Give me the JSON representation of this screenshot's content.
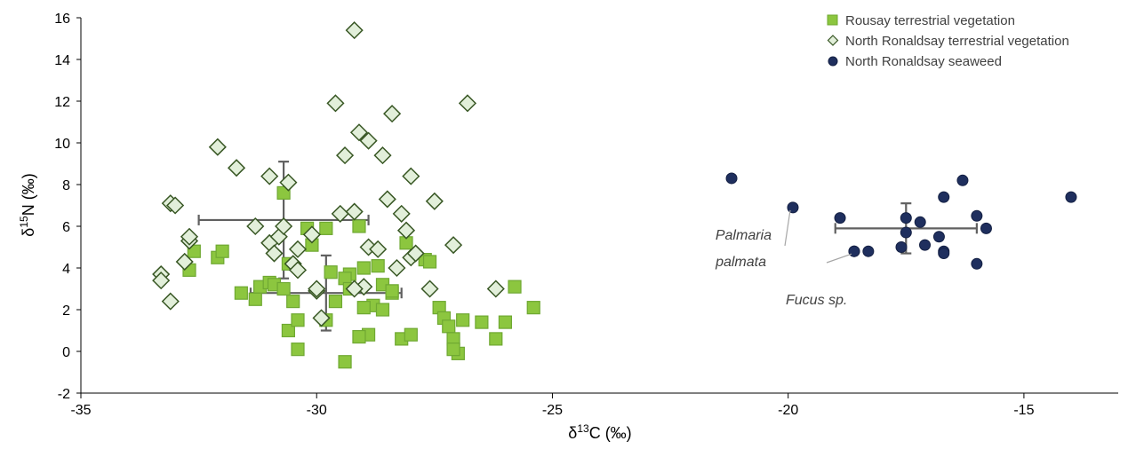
{
  "chart_data": {
    "type": "scatter",
    "xlim": [
      -35,
      -13
    ],
    "ylim": [
      -2,
      16
    ],
    "xticks": [
      -35,
      -30,
      -25,
      -20,
      -15
    ],
    "yticks": [
      -2,
      0,
      2,
      4,
      6,
      8,
      10,
      12,
      14,
      16
    ],
    "xlabel": {
      "prefix": "δ",
      "sup": "13",
      "suffix": "C (‰)"
    },
    "ylabel": {
      "prefix": "δ",
      "sup": "15",
      "suffix": "N (‰)"
    },
    "legend_position": "top-right",
    "grid": false,
    "series": [
      {
        "name": "Rousay terrestrial vegetation",
        "marker": "square",
        "fill": "#8cc63f",
        "stroke": "#6fa832",
        "points": [
          [
            -32.7,
            3.9
          ],
          [
            -32.6,
            4.8
          ],
          [
            -32.1,
            4.5
          ],
          [
            -32.0,
            4.8
          ],
          [
            -31.6,
            2.8
          ],
          [
            -31.3,
            2.5
          ],
          [
            -31.2,
            3.1
          ],
          [
            -31.0,
            3.3
          ],
          [
            -30.9,
            3.2
          ],
          [
            -30.7,
            3.0
          ],
          [
            -30.5,
            2.4
          ],
          [
            -30.6,
            1.0
          ],
          [
            -30.4,
            1.5
          ],
          [
            -30.6,
            4.2
          ],
          [
            -30.2,
            5.9
          ],
          [
            -30.7,
            7.6
          ],
          [
            -30.1,
            5.1
          ],
          [
            -29.8,
            5.9
          ],
          [
            -30.4,
            0.1
          ],
          [
            -29.8,
            1.5
          ],
          [
            -29.6,
            2.4
          ],
          [
            -29.7,
            3.8
          ],
          [
            -29.3,
            3.7
          ],
          [
            -29.4,
            3.5
          ],
          [
            -29.3,
            3.0
          ],
          [
            -29.1,
            6.0
          ],
          [
            -29.0,
            4.0
          ],
          [
            -28.8,
            2.2
          ],
          [
            -29.0,
            2.1
          ],
          [
            -28.9,
            0.8
          ],
          [
            -29.1,
            0.7
          ],
          [
            -28.6,
            3.2
          ],
          [
            -28.4,
            2.8
          ],
          [
            -28.2,
            0.6
          ],
          [
            -28.0,
            0.8
          ],
          [
            -28.1,
            5.2
          ],
          [
            -27.7,
            4.4
          ],
          [
            -27.6,
            4.3
          ],
          [
            -27.4,
            2.1
          ],
          [
            -27.3,
            1.6
          ],
          [
            -27.2,
            1.2
          ],
          [
            -27.1,
            0.6
          ],
          [
            -27.0,
            -0.1
          ],
          [
            -28.4,
            2.9
          ],
          [
            -28.7,
            4.1
          ],
          [
            -29.4,
            -0.5
          ],
          [
            -26.9,
            1.5
          ],
          [
            -26.5,
            1.4
          ],
          [
            -26.2,
            0.6
          ],
          [
            -26.0,
            1.4
          ],
          [
            -25.8,
            3.1
          ],
          [
            -25.4,
            2.1
          ],
          [
            -27.1,
            0.1
          ],
          [
            -28.6,
            2.0
          ]
        ]
      },
      {
        "name": "North Ronaldsay terrestrial vegetation",
        "marker": "diamond",
        "fill": "#e2efda",
        "stroke": "#375623",
        "points": [
          [
            -33.3,
            3.7
          ],
          [
            -33.3,
            3.4
          ],
          [
            -33.1,
            2.4
          ],
          [
            -33.1,
            7.1
          ],
          [
            -33.0,
            7.0
          ],
          [
            -32.8,
            4.3
          ],
          [
            -32.7,
            5.3
          ],
          [
            -32.7,
            5.5
          ],
          [
            -32.1,
            9.8
          ],
          [
            -31.7,
            8.8
          ],
          [
            -31.3,
            6.0
          ],
          [
            -31.0,
            8.4
          ],
          [
            -31.0,
            5.2
          ],
          [
            -30.9,
            4.7
          ],
          [
            -30.8,
            5.5
          ],
          [
            -30.7,
            6.0
          ],
          [
            -30.6,
            8.1
          ],
          [
            -30.5,
            4.2
          ],
          [
            -30.4,
            4.9
          ],
          [
            -30.4,
            3.9
          ],
          [
            -30.1,
            5.6
          ],
          [
            -30.0,
            2.9
          ],
          [
            -29.9,
            1.6
          ],
          [
            -30.0,
            3.0
          ],
          [
            -29.6,
            11.9
          ],
          [
            -29.5,
            6.6
          ],
          [
            -29.4,
            9.4
          ],
          [
            -29.2,
            6.7
          ],
          [
            -29.0,
            3.1
          ],
          [
            -29.2,
            3.0
          ],
          [
            -29.2,
            15.4
          ],
          [
            -29.1,
            10.5
          ],
          [
            -28.9,
            10.1
          ],
          [
            -28.9,
            5.0
          ],
          [
            -28.7,
            4.9
          ],
          [
            -28.6,
            9.4
          ],
          [
            -28.5,
            7.3
          ],
          [
            -28.4,
            11.4
          ],
          [
            -28.3,
            4.0
          ],
          [
            -28.2,
            6.6
          ],
          [
            -28.1,
            5.8
          ],
          [
            -28.0,
            8.4
          ],
          [
            -28.0,
            4.5
          ],
          [
            -27.9,
            4.7
          ],
          [
            -27.6,
            3.0
          ],
          [
            -27.5,
            7.2
          ],
          [
            -27.1,
            5.1
          ],
          [
            -26.8,
            11.9
          ],
          [
            -26.2,
            3.0
          ]
        ]
      },
      {
        "name": "North Ronaldsay seaweed",
        "marker": "circle",
        "fill": "#1f2f5e",
        "stroke": "#142043",
        "points": [
          [
            -21.2,
            8.3
          ],
          [
            -19.9,
            6.9
          ],
          [
            -18.9,
            6.4
          ],
          [
            -18.6,
            4.8
          ],
          [
            -18.6,
            4.8
          ],
          [
            -18.3,
            4.8
          ],
          [
            -17.6,
            5.0
          ],
          [
            -17.5,
            5.7
          ],
          [
            -17.5,
            6.4
          ],
          [
            -17.2,
            6.2
          ],
          [
            -17.1,
            5.1
          ],
          [
            -16.8,
            5.5
          ],
          [
            -16.7,
            7.4
          ],
          [
            -16.7,
            4.8
          ],
          [
            -16.7,
            4.7
          ],
          [
            -16.3,
            8.2
          ],
          [
            -16.0,
            6.5
          ],
          [
            -16.0,
            4.2
          ],
          [
            -15.8,
            5.9
          ],
          [
            -14.0,
            7.4
          ]
        ]
      }
    ],
    "error_bars": [
      {
        "x": -30.7,
        "y": 6.3,
        "x_err": 1.8,
        "y_err": 2.8
      },
      {
        "x": -29.8,
        "y": 2.8,
        "x_err": 1.6,
        "y_err": 1.8
      },
      {
        "x": -17.5,
        "y": 5.9,
        "x_err": 1.5,
        "y_err": 1.2
      }
    ],
    "error_bar_color": "#606060",
    "annotations": [
      {
        "lines": [
          "Palmaria",
          "palmata"
        ],
        "target": [
          -19.9,
          6.9
        ]
      },
      {
        "lines": [
          "Fucus sp."
        ],
        "target": [
          -18.6,
          4.8
        ]
      }
    ]
  }
}
